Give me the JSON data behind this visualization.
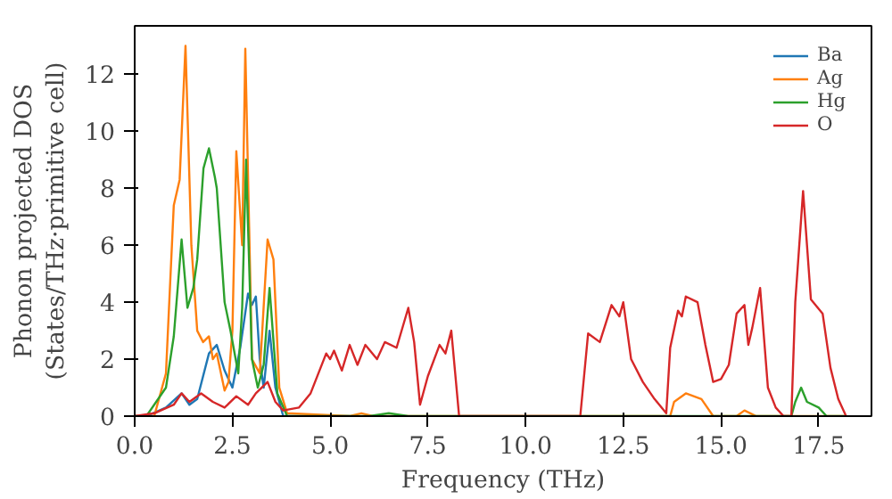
{
  "chart_data": {
    "type": "line",
    "xlabel": "Frequency (THz)",
    "ylabel": "Phonon projected DOS\n(States/THz·primitive cell)",
    "xlim": [
      0,
      18.85
    ],
    "ylim": [
      0,
      13.7
    ],
    "xticks": [
      {
        "value": 0,
        "label": "0.0"
      },
      {
        "value": 2.5,
        "label": "2.5"
      },
      {
        "value": 5,
        "label": "5.0"
      },
      {
        "value": 7.5,
        "label": "7.5"
      },
      {
        "value": 10,
        "label": "10.0"
      },
      {
        "value": 12.5,
        "label": "12.5"
      },
      {
        "value": 15,
        "label": "15.0"
      },
      {
        "value": 17.5,
        "label": "17.5"
      }
    ],
    "yticks": [
      0,
      2,
      4,
      6,
      8,
      10,
      12
    ],
    "grid": false,
    "legend": "top right",
    "line_style": "solid",
    "marker": "none",
    "series": [
      {
        "name": "Ba",
        "color": "#1f77b4",
        "x": [
          0,
          0.3,
          0.8,
          1.2,
          1.4,
          1.6,
          1.9,
          2.1,
          2.3,
          2.5,
          2.7,
          2.9,
          3.0,
          3.1,
          3.2,
          3.3,
          3.45,
          3.6,
          3.8,
          5.5
        ],
        "values": [
          0,
          0,
          0.3,
          0.8,
          0.4,
          0.6,
          2.2,
          2.5,
          1.6,
          1.0,
          2.4,
          4.3,
          3.9,
          4.2,
          2.0,
          1.0,
          3.0,
          1.0,
          0,
          0
        ]
      },
      {
        "name": "Ag",
        "color": "#ff7f0e",
        "x": [
          0,
          0.5,
          0.8,
          1.0,
          1.15,
          1.3,
          1.45,
          1.6,
          1.75,
          1.9,
          2.0,
          2.1,
          2.3,
          2.4,
          2.5,
          2.6,
          2.75,
          2.83,
          3.0,
          3.2,
          3.4,
          3.55,
          3.7,
          3.9,
          5.5,
          5.8,
          6.1,
          13.7,
          13.8,
          14.1,
          14.5,
          14.8,
          15.4,
          15.6,
          15.9,
          18.2
        ],
        "values": [
          0,
          0,
          1.5,
          7.4,
          8.3,
          13.0,
          6.0,
          3.0,
          2.6,
          2.8,
          2.0,
          2.2,
          0.9,
          1.2,
          3.0,
          9.3,
          6.0,
          12.9,
          2.0,
          1.5,
          6.2,
          5.5,
          1.0,
          0.1,
          0,
          0.1,
          0,
          0,
          0.5,
          0.8,
          0.6,
          0,
          0,
          0.2,
          0,
          0
        ]
      },
      {
        "name": "Hg",
        "color": "#2ca02c",
        "x": [
          0,
          0.3,
          0.8,
          1.0,
          1.2,
          1.35,
          1.5,
          1.6,
          1.76,
          1.9,
          2.05,
          2.1,
          2.3,
          2.45,
          2.65,
          2.75,
          2.85,
          3.0,
          3.15,
          3.3,
          3.45,
          3.65,
          3.9,
          6.0,
          6.5,
          7.0,
          16.8,
          16.9,
          17.05,
          17.2,
          17.5,
          17.7,
          18.2
        ],
        "values": [
          0,
          0,
          1.0,
          2.8,
          6.2,
          3.8,
          4.5,
          5.5,
          8.7,
          9.4,
          8.4,
          8.0,
          4.0,
          3.0,
          1.5,
          3.8,
          9.0,
          2.0,
          1.0,
          1.8,
          4.5,
          0.8,
          0,
          0,
          0.1,
          0,
          0,
          0.5,
          1.0,
          0.5,
          0.3,
          0,
          0
        ]
      },
      {
        "name": "O",
        "color": "#d62728",
        "x": [
          0,
          0.5,
          1.0,
          1.2,
          1.4,
          1.7,
          2.0,
          2.3,
          2.6,
          2.9,
          3.1,
          3.4,
          3.6,
          3.8,
          4.2,
          4.5,
          4.9,
          5.0,
          5.1,
          5.3,
          5.5,
          5.7,
          5.9,
          6.2,
          6.4,
          6.7,
          7.0,
          7.15,
          7.3,
          7.5,
          7.8,
          7.95,
          8.1,
          8.3,
          11.4,
          11.6,
          11.9,
          12.2,
          12.4,
          12.5,
          12.7,
          13.0,
          13.3,
          13.6,
          13.7,
          13.9,
          14.0,
          14.1,
          14.4,
          14.6,
          14.8,
          15.0,
          15.2,
          15.4,
          15.6,
          15.7,
          15.8,
          16.0,
          16.2,
          16.4,
          16.6,
          16.8,
          16.9,
          17.1,
          17.3,
          17.6,
          17.8,
          18.0,
          18.2
        ],
        "values": [
          0,
          0.1,
          0.4,
          0.8,
          0.5,
          0.8,
          0.5,
          0.3,
          0.7,
          0.4,
          0.8,
          1.2,
          0.5,
          0.2,
          0.3,
          0.8,
          2.2,
          2.0,
          2.3,
          1.6,
          2.5,
          1.8,
          2.5,
          2.0,
          2.6,
          2.4,
          3.8,
          2.6,
          0.4,
          1.4,
          2.5,
          2.2,
          3.0,
          0,
          0,
          2.9,
          2.6,
          3.9,
          3.5,
          4.0,
          2.0,
          1.2,
          0.6,
          0.1,
          2.4,
          3.7,
          3.5,
          4.2,
          4.0,
          2.5,
          1.2,
          1.3,
          1.8,
          3.6,
          3.9,
          2.5,
          3.1,
          4.5,
          1.0,
          0.3,
          0,
          0,
          4.0,
          7.9,
          4.1,
          3.6,
          1.7,
          0.6,
          0
        ]
      }
    ]
  }
}
